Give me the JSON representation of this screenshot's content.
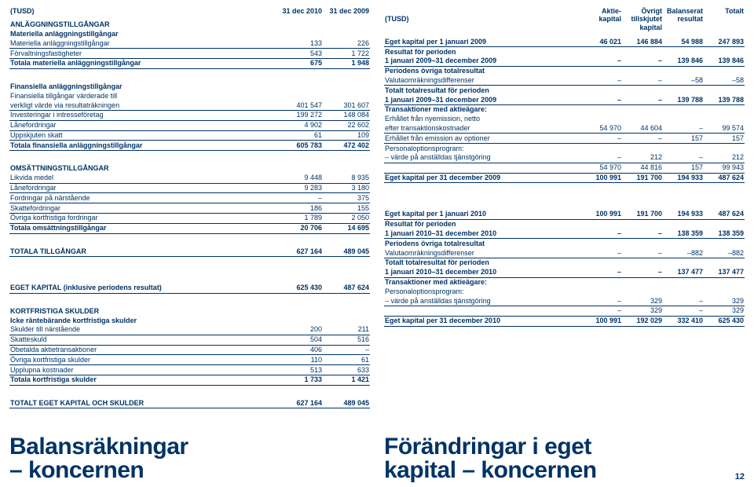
{
  "currency_label": "(TUSD)",
  "left": {
    "header_cols": [
      "31 dec 2010",
      "31 dec 2009"
    ],
    "rows": [
      {
        "type": "section",
        "label": "ANLÄGGNINGSTILLGÅNGAR"
      },
      {
        "type": "bold",
        "label": "Materiella anläggningstillgångar"
      },
      {
        "label": "Materiella anläggningstillgångar",
        "c1": "133",
        "c2": "226",
        "underline": true
      },
      {
        "label": "Förvaltningsfastigheter",
        "c1": "543",
        "c2": "1 722",
        "underline": true
      },
      {
        "type": "bold",
        "label": "Totala materiella anläggningstillgångar",
        "c1": "675",
        "c2": "1 948",
        "underline": true
      },
      {
        "type": "blank"
      },
      {
        "type": "bold",
        "label": "Finansiella anläggningstillgångar"
      },
      {
        "label": "Finansiella tillgångar värderade till"
      },
      {
        "label": "verkligt värde via resultaträkningen",
        "c1": "401 547",
        "c2": "301 607",
        "underline": true
      },
      {
        "label": "Investeringar i intresseföretag",
        "c1": "199 272",
        "c2": "148 084",
        "underline": true
      },
      {
        "label": "Lånefordringar",
        "c1": "4 902",
        "c2": "22 602",
        "underline": true
      },
      {
        "label": "Uppskjuten skatt",
        "c1": "61",
        "c2": "109",
        "underline": true
      },
      {
        "type": "bold",
        "label": "Totala finansiella anläggningstillgångar",
        "c1": "605 783",
        "c2": "472 402",
        "underline": true
      },
      {
        "type": "blank"
      },
      {
        "type": "section",
        "label": "OMSÄTTNINGSTILLGÅNGAR"
      },
      {
        "label": "Likvida medel",
        "c1": "9 448",
        "c2": "8 935",
        "underline": true
      },
      {
        "label": "Lånefordringar",
        "c1": "9 283",
        "c2": "3 180",
        "underline": true
      },
      {
        "label": "Fordringar på närstående",
        "c1": "–",
        "c2": "375",
        "underline": true
      },
      {
        "label": "Skattefordringar",
        "c1": "186",
        "c2": "155",
        "underline": true
      },
      {
        "label": "Övriga kortfristiga fordringar",
        "c1": "1 789",
        "c2": "2 050",
        "underline": true
      },
      {
        "type": "bold",
        "label": "Totala omsättningstillgångar",
        "c1": "20 706",
        "c2": "14 695",
        "underline": true
      },
      {
        "type": "blank"
      },
      {
        "type": "bold",
        "label": "TOTALA TILLGÅNGAR",
        "c1": "627 164",
        "c2": "489 045",
        "underline": true
      },
      {
        "type": "blank"
      },
      {
        "type": "blank"
      },
      {
        "type": "bold",
        "label": "EGET KAPITAL (inklusive periodens resultat)",
        "c1": "625 430",
        "c2": "487 624",
        "underline": true
      },
      {
        "type": "blank"
      },
      {
        "type": "section",
        "label": "KORTFRISTIGA SKULDER"
      },
      {
        "type": "bold",
        "label": "Icke räntebärande kortfristiga skulder"
      },
      {
        "label": "Skulder till närstående",
        "c1": "200",
        "c2": "211",
        "underline": true
      },
      {
        "label": "Skatteskuld",
        "c1": "504",
        "c2": "516",
        "underline": true
      },
      {
        "label": "Obetalda aktietransaktioner",
        "c1": "406",
        "c2": "–",
        "underline": true
      },
      {
        "label": "Övriga kortfristiga skulder",
        "c1": "110",
        "c2": "61",
        "underline": true
      },
      {
        "label": "Upplupna kostnader",
        "c1": "513",
        "c2": "633",
        "underline": true
      },
      {
        "type": "bold",
        "label": "Totala kortfristiga skulder",
        "c1": "1 733",
        "c2": "1 421",
        "underline": true
      },
      {
        "type": "blank"
      },
      {
        "type": "bold",
        "label": "TOTALT EGET KAPITAL OCH SKULDER",
        "c1": "627 164",
        "c2": "489 045",
        "underline": true
      }
    ]
  },
  "right": {
    "header_cols": [
      "Aktie-\nkapital",
      "Övrigt\ntillskjutet\nkapital",
      "Balanserat\nresultat",
      "Totalt"
    ],
    "rows": [
      {
        "type": "bold",
        "label": "Eget kapital per 1 januari 2009",
        "c1": "46 021",
        "c2": "146 884",
        "c3": "54 988",
        "c4": "247 893",
        "underline": true
      },
      {
        "type": "bold",
        "label": "Resultat för perioden"
      },
      {
        "type": "bold",
        "label": "1 januari 2009–31 december 2009",
        "c1": "–",
        "c2": "–",
        "c3": "139 846",
        "c4": "139 846",
        "underline": true
      },
      {
        "type": "bold",
        "label": "Periodens övriga totalresultat"
      },
      {
        "label": "Valutaomräkningsdifferenser",
        "c1": "–",
        "c2": "–",
        "c3": "–58",
        "c4": "–58",
        "underline": true
      },
      {
        "type": "bold",
        "label": "Totalt totalresultat för perioden"
      },
      {
        "type": "bold",
        "label": "1 januari 2009–31 december 2009",
        "c1": "–",
        "c2": "–",
        "c3": "139 788",
        "c4": "139 788",
        "underline": true
      },
      {
        "type": "bold",
        "label": "Transaktioner med aktieägare:"
      },
      {
        "label": "Erhållet från nyemission, netto"
      },
      {
        "label": "efter transaktionskostnader",
        "c1": "54 970",
        "c2": "44 604",
        "c3": "–",
        "c4": "99 574",
        "underline": true
      },
      {
        "label": "Erhållet från emission av optioner",
        "c1": "–",
        "c2": "–",
        "c3": "157",
        "c4": "157",
        "underline": true
      },
      {
        "label": "Personaloptionsprogram:"
      },
      {
        "label": "– värde på anställdas tjänstgöring",
        "c1": "–",
        "c2": "212",
        "c3": "–",
        "c4": "212",
        "underline": true
      },
      {
        "label": "",
        "c1": "54 970",
        "c2": "44 816",
        "c3": "157",
        "c4": "99 943",
        "underline": true
      },
      {
        "type": "bold",
        "label": "Eget kapital per 31 december 2009",
        "c1": "100 991",
        "c2": "191 700",
        "c3": "194 933",
        "c4": "487 624",
        "underline": true
      },
      {
        "type": "blank"
      },
      {
        "type": "blank"
      },
      {
        "type": "bold",
        "label": "Eget kapital per 1 januari 2010",
        "c1": "100 991",
        "c2": "191 700",
        "c3": "194 933",
        "c4": "487 624",
        "underline": true
      },
      {
        "type": "bold",
        "label": "Resultat för perioden"
      },
      {
        "type": "bold",
        "label": "1 januari 2010–31 december 2010",
        "c1": "–",
        "c2": "–",
        "c3": "138 359",
        "c4": "138 359",
        "underline": true
      },
      {
        "type": "bold",
        "label": "Periodens övriga totalresultat"
      },
      {
        "label": "Valutaomräkningsdifferenser",
        "c1": "–",
        "c2": "–",
        "c3": "–882",
        "c4": "–882",
        "underline": true
      },
      {
        "type": "bold",
        "label": "Totalt totalresultat för perioden"
      },
      {
        "type": "bold",
        "label": "1 januari 2010–31 december 2010",
        "c1": "–",
        "c2": "–",
        "c3": "137 477",
        "c4": "137 477",
        "underline": true
      },
      {
        "type": "bold",
        "label": "Transaktioner med aktieägare:"
      },
      {
        "label": "Personaloptionsprogram:"
      },
      {
        "label": "– värde på anställdas tjänstgöring",
        "c1": "–",
        "c2": "329",
        "c3": "–",
        "c4": "329",
        "underline": true
      },
      {
        "label": "",
        "c1": "–",
        "c2": "329",
        "c3": "–",
        "c4": "329",
        "underline": true
      },
      {
        "type": "bold",
        "label": "Eget kapital per 31 december 2010",
        "c1": "100 991",
        "c2": "192 029",
        "c3": "332 410",
        "c4": "625 430",
        "underline": true
      }
    ]
  },
  "titles": {
    "left_line1": "Balansräkningar",
    "left_line2": "– koncernen",
    "right_line1": "Förändringar i eget",
    "right_line2": "kapital – koncernen"
  },
  "page_number": "12"
}
